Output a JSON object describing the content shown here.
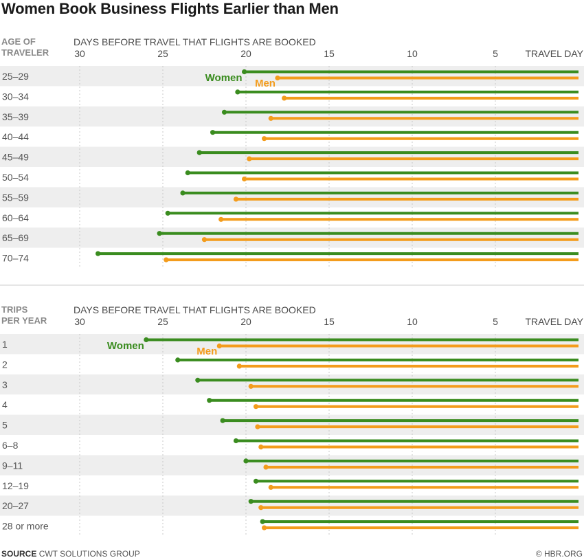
{
  "title": "Women Book Business Flights Earlier than Men",
  "colors": {
    "women": "#3a8c1f",
    "men": "#f39c1c",
    "band": "#eeeeee",
    "grid": "#c8c8c8",
    "divider": "#cccccc"
  },
  "chart_data": [
    {
      "type": "dumbbell-bar",
      "category_title": [
        "AGE OF",
        "TRAVELER"
      ],
      "axis_label": "DAYS BEFORE TRAVEL THAT FLIGHTS ARE BOOKED",
      "ticks": [
        {
          "value": 30,
          "label": "30"
        },
        {
          "value": 25,
          "label": "25"
        },
        {
          "value": 20,
          "label": "20"
        },
        {
          "value": 15,
          "label": "15"
        },
        {
          "value": 10,
          "label": "10"
        },
        {
          "value": 5,
          "label": "5"
        },
        {
          "value": 0,
          "label": "TRAVEL DAY"
        }
      ],
      "xlim": [
        30,
        0
      ],
      "categories": [
        "25–29",
        "30–34",
        "35–39",
        "40–44",
        "45–49",
        "50–54",
        "55–59",
        "60–64",
        "65–69",
        "70–74"
      ],
      "series": [
        {
          "name": "Women",
          "values": [
            20.1,
            20.5,
            21.3,
            22.0,
            22.8,
            23.5,
            23.8,
            24.7,
            25.2,
            28.9
          ]
        },
        {
          "name": "Men",
          "values": [
            18.1,
            17.7,
            18.5,
            18.9,
            19.8,
            20.1,
            20.6,
            21.5,
            22.5,
            24.8
          ]
        }
      ],
      "annotations": {
        "women_label": "Women",
        "men_label": "Men"
      }
    },
    {
      "type": "dumbbell-bar",
      "category_title": [
        "TRIPS",
        "PER YEAR"
      ],
      "axis_label": "DAYS BEFORE TRAVEL THAT FLIGHTS ARE BOOKED",
      "ticks": [
        {
          "value": 30,
          "label": "30"
        },
        {
          "value": 25,
          "label": "25"
        },
        {
          "value": 20,
          "label": "20"
        },
        {
          "value": 15,
          "label": "15"
        },
        {
          "value": 10,
          "label": "10"
        },
        {
          "value": 5,
          "label": "5"
        },
        {
          "value": 0,
          "label": "TRAVEL DAY"
        }
      ],
      "xlim": [
        30,
        0
      ],
      "categories": [
        "1",
        "2",
        "3",
        "4",
        "5",
        "6–8",
        "9–11",
        "12–19",
        "20–27",
        "28 or more"
      ],
      "series": [
        {
          "name": "Women",
          "values": [
            26.0,
            24.1,
            22.9,
            22.2,
            21.4,
            20.6,
            20.0,
            19.4,
            19.7,
            19.0
          ]
        },
        {
          "name": "Men",
          "values": [
            21.6,
            20.4,
            19.7,
            19.4,
            19.3,
            19.1,
            18.8,
            18.5,
            19.1,
            18.9
          ]
        }
      ],
      "annotations": {
        "women_label": "Women",
        "men_label": "Men"
      }
    }
  ],
  "source": {
    "label": "SOURCE",
    "text": "CWT SOLUTIONS GROUP"
  },
  "copyright": "© HBR.ORG"
}
